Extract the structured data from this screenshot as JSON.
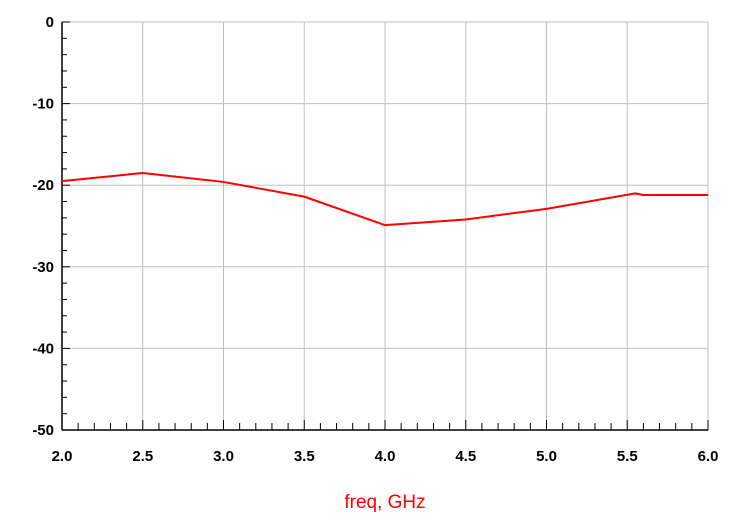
{
  "chart_data": {
    "type": "line",
    "title": "",
    "xlabel": "freq, GHz",
    "ylabel": "",
    "xlim": [
      2.0,
      6.0
    ],
    "ylim": [
      -50,
      0
    ],
    "x_ticks": [
      "2.0",
      "2.5",
      "3.0",
      "3.5",
      "4.0",
      "4.5",
      "5.0",
      "5.5",
      "6.0"
    ],
    "y_ticks": [
      "0",
      "-10",
      "-20",
      "-30",
      "-40",
      "-50"
    ],
    "grid": true,
    "series": [
      {
        "color": "#ff0000",
        "x": [
          2.0,
          2.5,
          3.0,
          3.5,
          4.0,
          4.5,
          5.0,
          5.55,
          5.6,
          6.0
        ],
        "y": [
          -19.5,
          -18.5,
          -19.6,
          -21.4,
          -24.9,
          -24.2,
          -22.9,
          -21.0,
          -21.2,
          -21.2
        ]
      }
    ]
  },
  "colors": {
    "grid": "#c0c0c0",
    "axis": "#000000",
    "xlabel": "#ff0000"
  }
}
